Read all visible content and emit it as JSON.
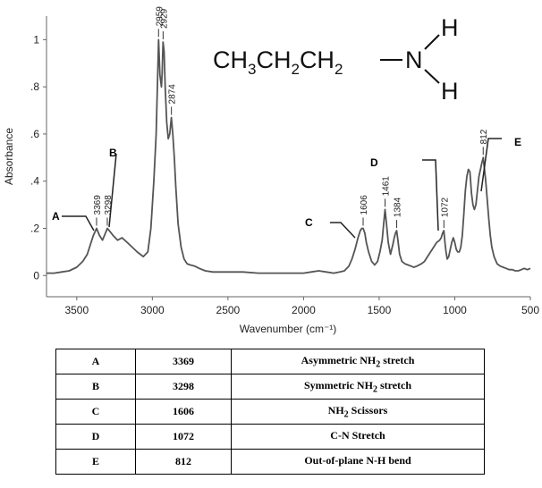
{
  "chart_data": {
    "type": "line",
    "title": "",
    "xlabel": "Wavenumber (cm⁻¹)",
    "ylabel": "Absorbance",
    "xlim": [
      3700,
      500
    ],
    "ylim": [
      -0.09,
      1.1
    ],
    "x_ticks": [
      3500,
      3000,
      2500,
      2000,
      1500,
      1000,
      500
    ],
    "y_ticks": [
      {
        "value": 0,
        "label": "0"
      },
      {
        "value": 0.2,
        "label": ".2"
      },
      {
        "value": 0.4,
        "label": ".4"
      },
      {
        "value": 0.6,
        "label": ".6"
      },
      {
        "value": 0.8,
        "label": ".8"
      },
      {
        "value": 1.0,
        "label": "1"
      }
    ],
    "grid": false,
    "line_color": "#555555",
    "spectrum": {
      "x": [
        3700,
        3650,
        3600,
        3550,
        3500,
        3460,
        3430,
        3410,
        3390,
        3369,
        3350,
        3330,
        3310,
        3298,
        3285,
        3260,
        3230,
        3200,
        3150,
        3100,
        3060,
        3030,
        3010,
        2990,
        2975,
        2965,
        2959,
        2950,
        2940,
        2935,
        2929,
        2922,
        2915,
        2905,
        2895,
        2885,
        2874,
        2865,
        2855,
        2845,
        2830,
        2810,
        2790,
        2770,
        2750,
        2720,
        2690,
        2650,
        2600,
        2500,
        2400,
        2300,
        2200,
        2100,
        2000,
        1950,
        1900,
        1850,
        1800,
        1760,
        1730,
        1700,
        1680,
        1660,
        1640,
        1625,
        1615,
        1606,
        1595,
        1585,
        1570,
        1550,
        1530,
        1510,
        1495,
        1480,
        1470,
        1461,
        1452,
        1440,
        1425,
        1410,
        1400,
        1392,
        1384,
        1376,
        1365,
        1350,
        1330,
        1310,
        1290,
        1270,
        1250,
        1220,
        1200,
        1180,
        1160,
        1140,
        1120,
        1100,
        1090,
        1080,
        1072,
        1065,
        1058,
        1050,
        1040,
        1030,
        1020,
        1010,
        1000,
        990,
        980,
        970,
        960,
        950,
        940,
        930,
        920,
        910,
        900,
        895,
        890,
        880,
        870,
        860,
        850,
        840,
        830,
        820,
        812,
        805,
        795,
        785,
        775,
        765,
        755,
        740,
        720,
        700,
        680,
        660,
        640,
        620,
        600,
        580,
        560,
        540,
        520,
        500
      ],
      "y": [
        0.01,
        0.01,
        0.015,
        0.02,
        0.035,
        0.06,
        0.09,
        0.13,
        0.17,
        0.2,
        0.17,
        0.15,
        0.18,
        0.2,
        0.19,
        0.17,
        0.15,
        0.16,
        0.13,
        0.1,
        0.08,
        0.1,
        0.2,
        0.4,
        0.6,
        0.85,
        1.0,
        0.85,
        0.8,
        0.86,
        0.99,
        0.95,
        0.8,
        0.65,
        0.58,
        0.6,
        0.67,
        0.6,
        0.5,
        0.38,
        0.22,
        0.12,
        0.07,
        0.05,
        0.045,
        0.04,
        0.03,
        0.02,
        0.015,
        0.015,
        0.015,
        0.01,
        0.01,
        0.01,
        0.01,
        0.015,
        0.02,
        0.015,
        0.01,
        0.015,
        0.02,
        0.04,
        0.07,
        0.11,
        0.16,
        0.19,
        0.2,
        0.2,
        0.18,
        0.14,
        0.1,
        0.06,
        0.045,
        0.06,
        0.1,
        0.15,
        0.22,
        0.28,
        0.22,
        0.14,
        0.09,
        0.13,
        0.16,
        0.18,
        0.19,
        0.15,
        0.09,
        0.06,
        0.05,
        0.045,
        0.04,
        0.035,
        0.04,
        0.05,
        0.06,
        0.08,
        0.1,
        0.12,
        0.14,
        0.15,
        0.16,
        0.18,
        0.19,
        0.14,
        0.1,
        0.07,
        0.08,
        0.11,
        0.14,
        0.16,
        0.14,
        0.11,
        0.1,
        0.1,
        0.12,
        0.17,
        0.26,
        0.36,
        0.42,
        0.45,
        0.44,
        0.4,
        0.35,
        0.3,
        0.28,
        0.3,
        0.36,
        0.42,
        0.45,
        0.48,
        0.5,
        0.46,
        0.4,
        0.32,
        0.24,
        0.17,
        0.12,
        0.08,
        0.05,
        0.04,
        0.035,
        0.03,
        0.025,
        0.025,
        0.02,
        0.02,
        0.025,
        0.03,
        0.025,
        0.03
      ]
    },
    "peak_labels": [
      {
        "text": "3369",
        "x": 3369,
        "y": 0.2
      },
      {
        "text": "3298",
        "x": 3298,
        "y": 0.2
      },
      {
        "text": "2959",
        "x": 2959,
        "y": 1.0
      },
      {
        "text": "2929",
        "x": 2929,
        "y": 0.99
      },
      {
        "text": "2874",
        "x": 2874,
        "y": 0.67
      },
      {
        "text": "1606",
        "x": 1606,
        "y": 0.2
      },
      {
        "text": "1461",
        "x": 1461,
        "y": 0.28
      },
      {
        "text": "1384",
        "x": 1384,
        "y": 0.19
      },
      {
        "text": "1072",
        "x": 1072,
        "y": 0.19
      },
      {
        "text": "812",
        "x": 812,
        "y": 0.5
      }
    ],
    "annotations": [
      {
        "letter": "A"
      },
      {
        "letter": "B"
      },
      {
        "letter": "C"
      },
      {
        "letter": "D"
      },
      {
        "letter": "E"
      }
    ]
  },
  "structure": {
    "chain": [
      "CH",
      "3",
      "CH",
      "2",
      "CH",
      "2"
    ],
    "nitrogen": "N",
    "hydrogen": "H"
  },
  "table": {
    "rows": [
      {
        "letter": "A",
        "wavenumber": "3369",
        "desc": "Asymmetric NH",
        "sub": "2",
        "desc_tail": " stretch"
      },
      {
        "letter": "B",
        "wavenumber": "3298",
        "desc": "Symmetric NH",
        "sub": "2",
        "desc_tail": " stretch"
      },
      {
        "letter": "C",
        "wavenumber": "1606",
        "desc": "NH",
        "sub": "2",
        "desc_tail": " Scissors"
      },
      {
        "letter": "D",
        "wavenumber": "1072",
        "desc": "C-N Stretch",
        "sub": "",
        "desc_tail": ""
      },
      {
        "letter": "E",
        "wavenumber": "812",
        "desc": "Out-of-plane N-H bend",
        "sub": "",
        "desc_tail": ""
      }
    ]
  }
}
